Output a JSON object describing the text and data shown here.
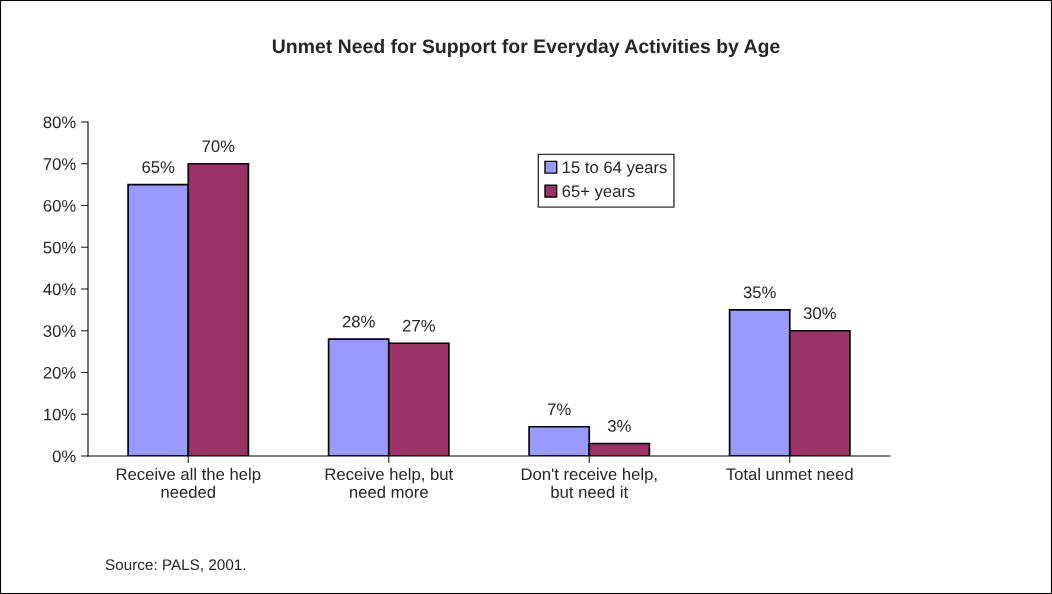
{
  "chart_data": {
    "type": "bar",
    "title": "Unmet Need for Support for Everyday Activities by Age",
    "categories": [
      "Receive all the help\nneeded",
      "Receive help, but\nneed more",
      "Don't receive help,\nbut need it",
      "Total unmet need"
    ],
    "series": [
      {
        "name": "15 to 64 years",
        "color": "#9999ff",
        "values": [
          65,
          28,
          7,
          35
        ],
        "value_labels": [
          "65%",
          "28%",
          "7%",
          "35%"
        ]
      },
      {
        "name": "65+ years",
        "color": "#993366",
        "values": [
          70,
          27,
          3,
          30
        ],
        "value_labels": [
          "70%",
          "27%",
          "3%",
          "30%"
        ]
      }
    ],
    "ylim": [
      0,
      80
    ],
    "yticks": [
      {
        "value": 0,
        "label": "0%"
      },
      {
        "value": 10,
        "label": "10%"
      },
      {
        "value": 20,
        "label": "20%"
      },
      {
        "value": 30,
        "label": "30%"
      },
      {
        "value": 40,
        "label": "40%"
      },
      {
        "value": 50,
        "label": "50%"
      },
      {
        "value": 60,
        "label": "60%"
      },
      {
        "value": 70,
        "label": "70%"
      },
      {
        "value": 80,
        "label": "80%"
      }
    ],
    "grid": false,
    "legend": "top right",
    "annotations": [
      "Source: PALS, 2001."
    ]
  }
}
